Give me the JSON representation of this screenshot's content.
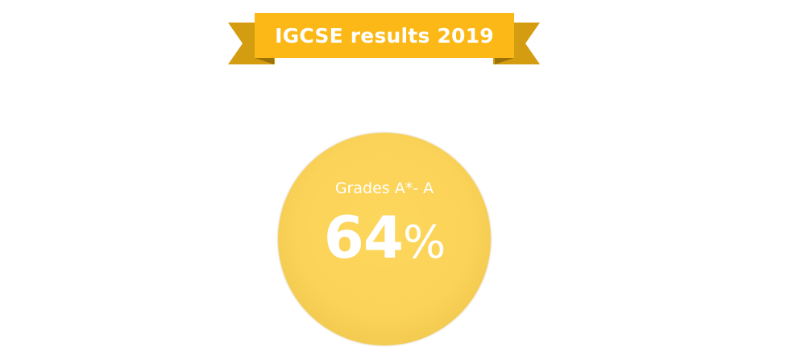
{
  "banner": {
    "title": "IGCSE results 2019"
  },
  "stat": {
    "label": "Grades A*- A",
    "value": "64",
    "unit": "%"
  },
  "colors": {
    "banner": "#fbb816",
    "banner_tail": "#d49c10",
    "circle": "#fbd358"
  }
}
